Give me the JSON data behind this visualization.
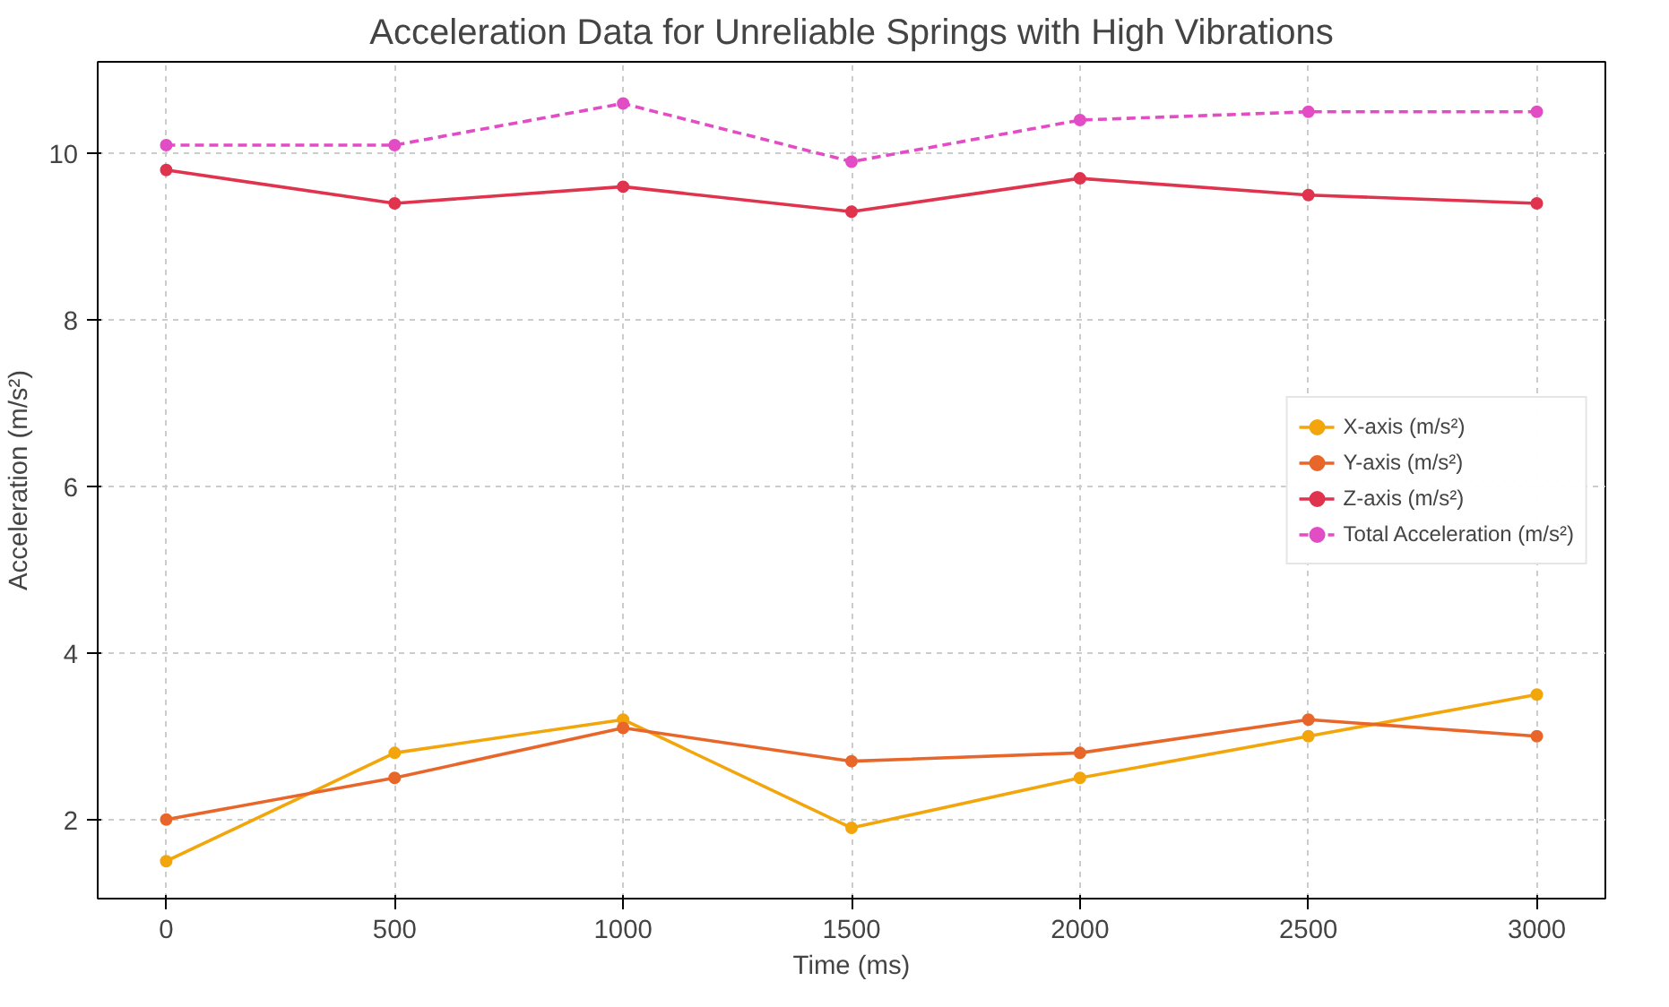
{
  "chart_data": {
    "type": "line",
    "title": "Acceleration Data for Unreliable Springs with High Vibrations",
    "xlabel": "Time (ms)",
    "ylabel": "Acceleration (m/s²)",
    "x": [
      0,
      500,
      1000,
      1500,
      2000,
      2500,
      3000
    ],
    "series": [
      {
        "name": "X-axis (m/s²)",
        "color": "#f2a60c",
        "values": [
          1.5,
          2.8,
          3.2,
          1.9,
          2.5,
          3.0,
          3.5
        ]
      },
      {
        "name": "Y-axis (m/s²)",
        "color": "#e8662a",
        "values": [
          2.0,
          2.5,
          3.1,
          2.7,
          2.8,
          3.2,
          3.0
        ]
      },
      {
        "name": "Z-axis (m/s²)",
        "color": "#e0334e",
        "values": [
          9.8,
          9.4,
          9.6,
          9.3,
          9.7,
          9.5,
          9.4
        ]
      },
      {
        "name": "Total Acceleration (m/s²)",
        "color": "#e24cc4",
        "values": [
          10.1,
          10.1,
          10.6,
          9.9,
          10.4,
          10.5,
          10.5
        ],
        "line_style": "dashed"
      }
    ],
    "xlim": [
      -150,
      3150
    ],
    "ylim": [
      1.05,
      11.1
    ],
    "xticks": [
      0,
      500,
      1000,
      1500,
      2000,
      2500,
      3000
    ],
    "yticks": [
      2,
      4,
      6,
      8,
      10
    ],
    "grid": true,
    "legend": "right",
    "marker": "circle",
    "line_style": "solid"
  }
}
